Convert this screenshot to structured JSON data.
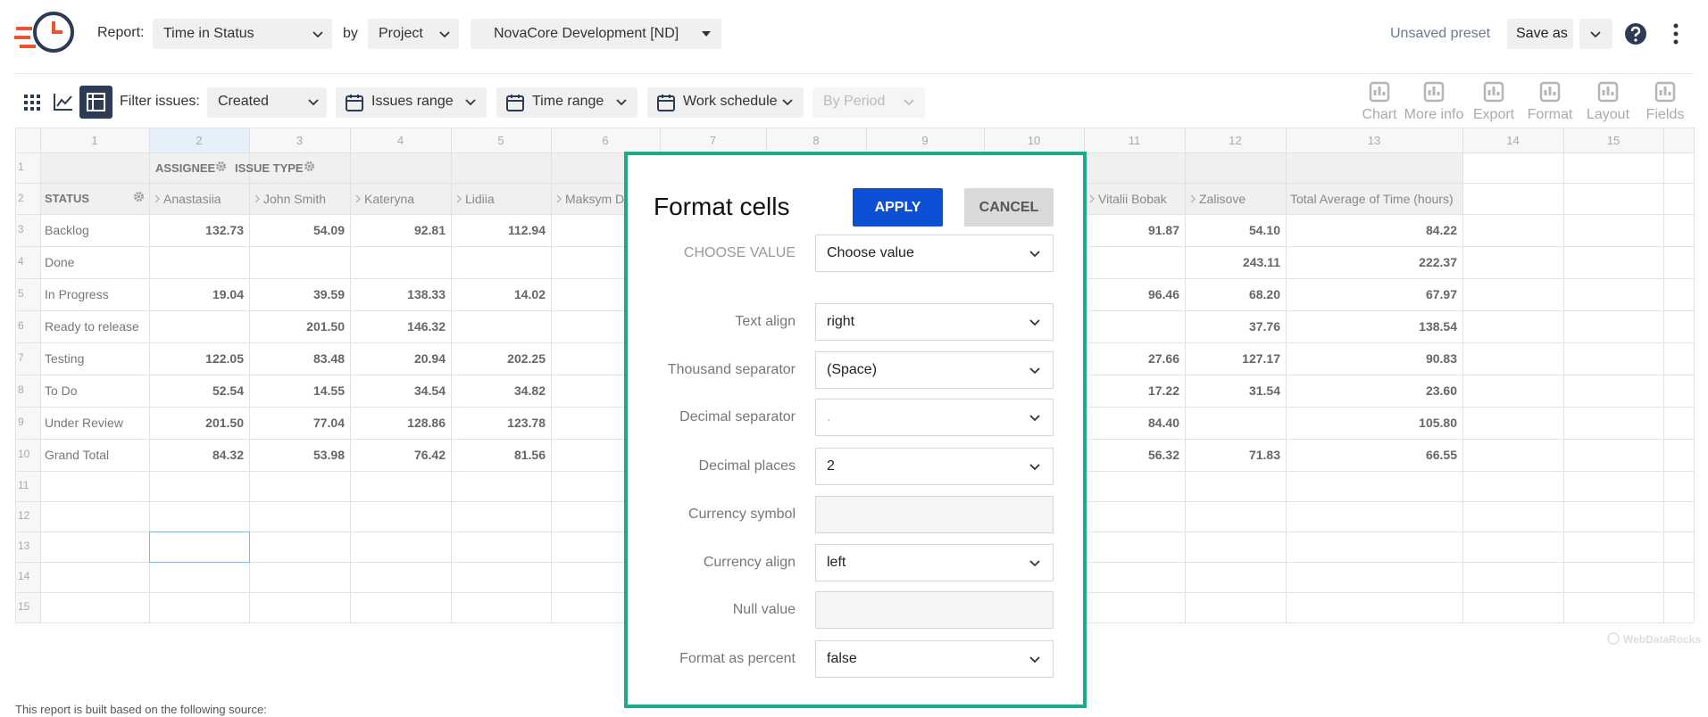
{
  "header": {
    "report_label": "Report:",
    "report": "Time in Status",
    "by": "by",
    "group_by": "Project",
    "project": "NovaCore Development [ND]",
    "unsaved": "Unsaved preset",
    "save_as": "Save as"
  },
  "toolbar": {
    "filter_label": "Filter issues:",
    "filter": "Created",
    "buttons": [
      "Issues range",
      "Time range",
      "Work schedule",
      "By Period"
    ],
    "tools": [
      "Chart",
      "More info",
      "Export",
      "Format",
      "Layout",
      "Fields"
    ]
  },
  "grid": {
    "column_numbers": [
      1,
      2,
      3,
      4,
      5,
      6,
      7,
      8,
      9,
      10,
      11,
      12,
      13,
      14,
      15
    ],
    "row_numbers": [
      1,
      2,
      3,
      4,
      5,
      6,
      7,
      8,
      9,
      10,
      11,
      12,
      13,
      14,
      15
    ],
    "row_header_labels": [
      "ASSIGNEE",
      "ISSUE TYPE"
    ],
    "status_header": "STATUS",
    "assignees": [
      "Anastasiia",
      "John Smith",
      "Kateryna",
      "Lidiia",
      "Maksym D",
      "Vitalii Bobak",
      "Zalisove"
    ],
    "total_header": "Total Average of Time (hours)",
    "rows": [
      {
        "status": "Backlog",
        "values": [
          "132.73",
          "54.09",
          "92.81",
          "112.94",
          "91.87",
          "54.10",
          "84.22"
        ]
      },
      {
        "status": "Done",
        "values": [
          null,
          null,
          null,
          null,
          null,
          "243.11",
          "222.37"
        ]
      },
      {
        "status": "In Progress",
        "values": [
          "19.04",
          "39.59",
          "138.33",
          "14.02",
          "96.46",
          "68.20",
          "67.97"
        ]
      },
      {
        "status": "Ready to release",
        "values": [
          null,
          "201.50",
          "146.32",
          null,
          null,
          "37.76",
          "138.54"
        ]
      },
      {
        "status": "Testing",
        "values": [
          "122.05",
          "83.48",
          "20.94",
          "202.25",
          "27.66",
          "127.17",
          "90.83"
        ]
      },
      {
        "status": "To Do",
        "values": [
          "52.54",
          "14.55",
          "34.54",
          "34.82",
          "17.22",
          "31.54",
          "23.60"
        ]
      },
      {
        "status": "Under Review",
        "values": [
          "201.50",
          "77.04",
          "128.86",
          "123.78",
          "84.40",
          null,
          "105.80"
        ]
      },
      {
        "status": "Grand Total",
        "values": [
          "84.32",
          "53.98",
          "76.42",
          "81.56",
          "56.32",
          "71.83",
          "66.55"
        ]
      }
    ]
  },
  "dialog": {
    "title": "Format cells",
    "apply": "APPLY",
    "cancel": "CANCEL",
    "fields": [
      {
        "label": "CHOOSE VALUE",
        "value": "Choose value"
      },
      {
        "label": "Text align",
        "value": "right"
      },
      {
        "label": "Thousand separator",
        "value": "(Space)"
      },
      {
        "label": "Decimal separator",
        "value": "."
      },
      {
        "label": "Decimal places",
        "value": "2"
      },
      {
        "label": "Currency symbol"
      },
      {
        "label": "Currency align",
        "value": "left"
      },
      {
        "label": "Null value"
      },
      {
        "label": "Format as percent",
        "value": "false"
      }
    ]
  },
  "footer": {
    "source_note": "This report is built based on the following source:",
    "watermark": "WebDataRocks"
  }
}
